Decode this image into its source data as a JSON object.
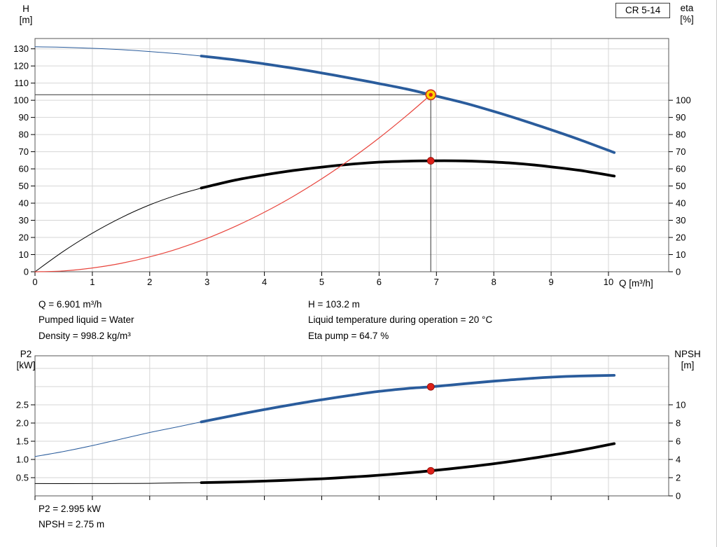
{
  "pump_label": "CR 5-14",
  "labels": {
    "top_left_line1": "H",
    "top_left_line2": "[m]",
    "top_right_line1": "eta",
    "top_right_line2": "[%]",
    "x_axis": "Q [m³/h]",
    "bottom_left_line1": "P2",
    "bottom_left_line2": "[kW]",
    "bottom_right_line1": "NPSH",
    "bottom_right_line2": "[m]"
  },
  "results": {
    "col_left": [
      "Q = 6.901 m³/h",
      "Pumped liquid = Water",
      "Density = 998.2 kg/m³"
    ],
    "col_right": [
      "H = 103.2 m",
      "Liquid temperature during operation = 20 °C",
      "Eta pump = 64.7 %"
    ],
    "bottom": [
      "P2 = 2.995 kW",
      "NPSH = 2.75 m"
    ]
  },
  "colors": {
    "curve_blue": "#2a5c9c",
    "curve_black": "#000000",
    "system_red": "#e8443c",
    "marker_red_fill": "#dd2019",
    "marker_red_edge": "#8e120c",
    "duty_fill": "#ffd400",
    "duty_edge": "#cc3322",
    "grid": "#d6d6d6",
    "plot_border": "#555555",
    "ref_line": "#333333"
  },
  "chart_data": [
    {
      "type": "line",
      "title": "CR 5-14 head and efficiency vs flow",
      "x_axis": {
        "label": "Q [m³/h]",
        "min": 0,
        "max": 11.05,
        "ticks": [
          0,
          1,
          2,
          3,
          4,
          5,
          6,
          7,
          8,
          9,
          10
        ],
        "show_labels": true
      },
      "y_left": {
        "label": "H [m]",
        "min": 0,
        "max": 136,
        "ticks": [
          0,
          10,
          20,
          30,
          40,
          50,
          60,
          70,
          80,
          90,
          100,
          110,
          120,
          130
        ]
      },
      "y_right": {
        "label": "eta [%]",
        "min": 0,
        "max": 136,
        "ticks": [
          0,
          10,
          20,
          30,
          40,
          50,
          60,
          70,
          80,
          90,
          100
        ]
      },
      "grid": true,
      "legend": "none",
      "series": [
        {
          "name": "head-curve",
          "axis": "left",
          "color": "#2a5c9c",
          "thin_until": 2.9,
          "points": [
            [
              0,
              131.2
            ],
            [
              0.5,
              130.9
            ],
            [
              1,
              130.3
            ],
            [
              1.5,
              129.5
            ],
            [
              2,
              128.4
            ],
            [
              2.5,
              127.1
            ],
            [
              2.9,
              125.8
            ],
            [
              3.5,
              123.5
            ],
            [
              4,
              121.2
            ],
            [
              4.5,
              118.7
            ],
            [
              5,
              115.9
            ],
            [
              5.5,
              112.9
            ],
            [
              6,
              109.7
            ],
            [
              6.5,
              106.4
            ],
            [
              6.901,
              103.2
            ],
            [
              7.5,
              98.3
            ],
            [
              8,
              93.5
            ],
            [
              8.5,
              88.3
            ],
            [
              9,
              82.8
            ],
            [
              9.5,
              77.0
            ],
            [
              10.1,
              69.5
            ]
          ]
        },
        {
          "name": "efficiency-curve",
          "axis": "right",
          "color": "#000000",
          "thin_until": 2.9,
          "points": [
            [
              0,
              0
            ],
            [
              0.5,
              12
            ],
            [
              1,
              22.5
            ],
            [
              1.5,
              31.5
            ],
            [
              2,
              39
            ],
            [
              2.5,
              45
            ],
            [
              2.9,
              48.8
            ],
            [
              3.5,
              53.5
            ],
            [
              4,
              56.5
            ],
            [
              4.5,
              59
            ],
            [
              5,
              61
            ],
            [
              5.5,
              62.7
            ],
            [
              6,
              63.9
            ],
            [
              6.5,
              64.5
            ],
            [
              6.901,
              64.7
            ],
            [
              7.5,
              64.6
            ],
            [
              8,
              64
            ],
            [
              8.5,
              62.9
            ],
            [
              9,
              61.2
            ],
            [
              9.5,
              59.1
            ],
            [
              10.1,
              55.8
            ]
          ]
        },
        {
          "name": "system-curve",
          "axis": "left",
          "color": "#e8443c",
          "thin_until": 99,
          "points": [
            [
              0,
              0
            ],
            [
              0.5,
              0.5
            ],
            [
              1,
              2.2
            ],
            [
              1.5,
              4.9
            ],
            [
              2,
              8.7
            ],
            [
              2.5,
              13.5
            ],
            [
              3,
              19.5
            ],
            [
              3.5,
              26.6
            ],
            [
              4,
              34.7
            ],
            [
              4.5,
              43.9
            ],
            [
              5,
              54.2
            ],
            [
              5.5,
              65.6
            ],
            [
              6,
              78.0
            ],
            [
              6.5,
              91.6
            ],
            [
              6.901,
              103.2
            ]
          ]
        }
      ],
      "ref_lines": [
        {
          "orient": "v",
          "axis": "left",
          "x": 6.901,
          "y_from": 0,
          "y_to": 103.2
        },
        {
          "orient": "h",
          "axis": "left",
          "y": 103.2,
          "x_from": 0,
          "x_to": 6.901
        }
      ],
      "markers": [
        {
          "name": "duty-point",
          "style": "duty",
          "axis": "left",
          "x": 6.901,
          "y": 103.2
        },
        {
          "name": "eta-point",
          "style": "dot",
          "axis": "right",
          "x": 6.901,
          "y": 64.7
        }
      ]
    },
    {
      "type": "line",
      "title": "P2 and NPSH vs flow",
      "x_axis": {
        "label": "Q [m³/h]",
        "min": 0,
        "max": 11.05,
        "ticks": [
          0,
          1,
          2,
          3,
          4,
          5,
          6,
          7,
          8,
          9,
          10
        ],
        "show_labels": false
      },
      "y_left": {
        "label": "P2 [kW]",
        "min": 0,
        "max": 3.846,
        "ticks": [
          0.5,
          1,
          1.5,
          2,
          2.5
        ],
        "tick_labels": [
          "0.5",
          "1.0",
          "1.5",
          "2.0",
          "2.5"
        ],
        "grid_ticks": [
          0.5,
          1,
          1.5,
          2,
          2.5,
          3,
          3.5
        ]
      },
      "y_right": {
        "label": "NPSH [m]",
        "min": 0,
        "max": 15.38,
        "ticks": [
          0,
          2,
          4,
          6,
          8,
          10
        ]
      },
      "grid": true,
      "legend": "none",
      "series": [
        {
          "name": "p2-curve",
          "axis": "left",
          "color": "#2a5c9c",
          "thin_until": 2.9,
          "points": [
            [
              0,
              1.08
            ],
            [
              0.5,
              1.22
            ],
            [
              1,
              1.38
            ],
            [
              1.5,
              1.56
            ],
            [
              2,
              1.74
            ],
            [
              2.5,
              1.9
            ],
            [
              2.9,
              2.03
            ],
            [
              3.5,
              2.22
            ],
            [
              4,
              2.37
            ],
            [
              4.5,
              2.51
            ],
            [
              5,
              2.64
            ],
            [
              5.5,
              2.76
            ],
            [
              6,
              2.87
            ],
            [
              6.5,
              2.95
            ],
            [
              6.901,
              2.995
            ],
            [
              7.5,
              3.08
            ],
            [
              8,
              3.15
            ],
            [
              8.5,
              3.21
            ],
            [
              9,
              3.26
            ],
            [
              9.5,
              3.29
            ],
            [
              10.1,
              3.31
            ]
          ]
        },
        {
          "name": "npsh-curve",
          "axis": "right",
          "color": "#000000",
          "thin_until": 2.9,
          "points": [
            [
              0,
              1.35
            ],
            [
              1,
              1.35
            ],
            [
              1.5,
              1.36
            ],
            [
              2,
              1.38
            ],
            [
              2.5,
              1.42
            ],
            [
              2.9,
              1.45
            ],
            [
              3.5,
              1.53
            ],
            [
              4,
              1.62
            ],
            [
              4.5,
              1.74
            ],
            [
              5,
              1.88
            ],
            [
              5.5,
              2.06
            ],
            [
              6,
              2.27
            ],
            [
              6.5,
              2.52
            ],
            [
              6.901,
              2.75
            ],
            [
              7.5,
              3.15
            ],
            [
              8,
              3.53
            ],
            [
              8.5,
              3.97
            ],
            [
              9,
              4.46
            ],
            [
              9.5,
              5.0
            ],
            [
              10.1,
              5.74
            ]
          ]
        }
      ],
      "ref_lines": [],
      "markers": [
        {
          "name": "p2-point",
          "style": "dot",
          "axis": "left",
          "x": 6.901,
          "y": 2.995
        },
        {
          "name": "npsh-point",
          "style": "dot",
          "axis": "right",
          "x": 6.901,
          "y": 2.75
        }
      ]
    }
  ]
}
